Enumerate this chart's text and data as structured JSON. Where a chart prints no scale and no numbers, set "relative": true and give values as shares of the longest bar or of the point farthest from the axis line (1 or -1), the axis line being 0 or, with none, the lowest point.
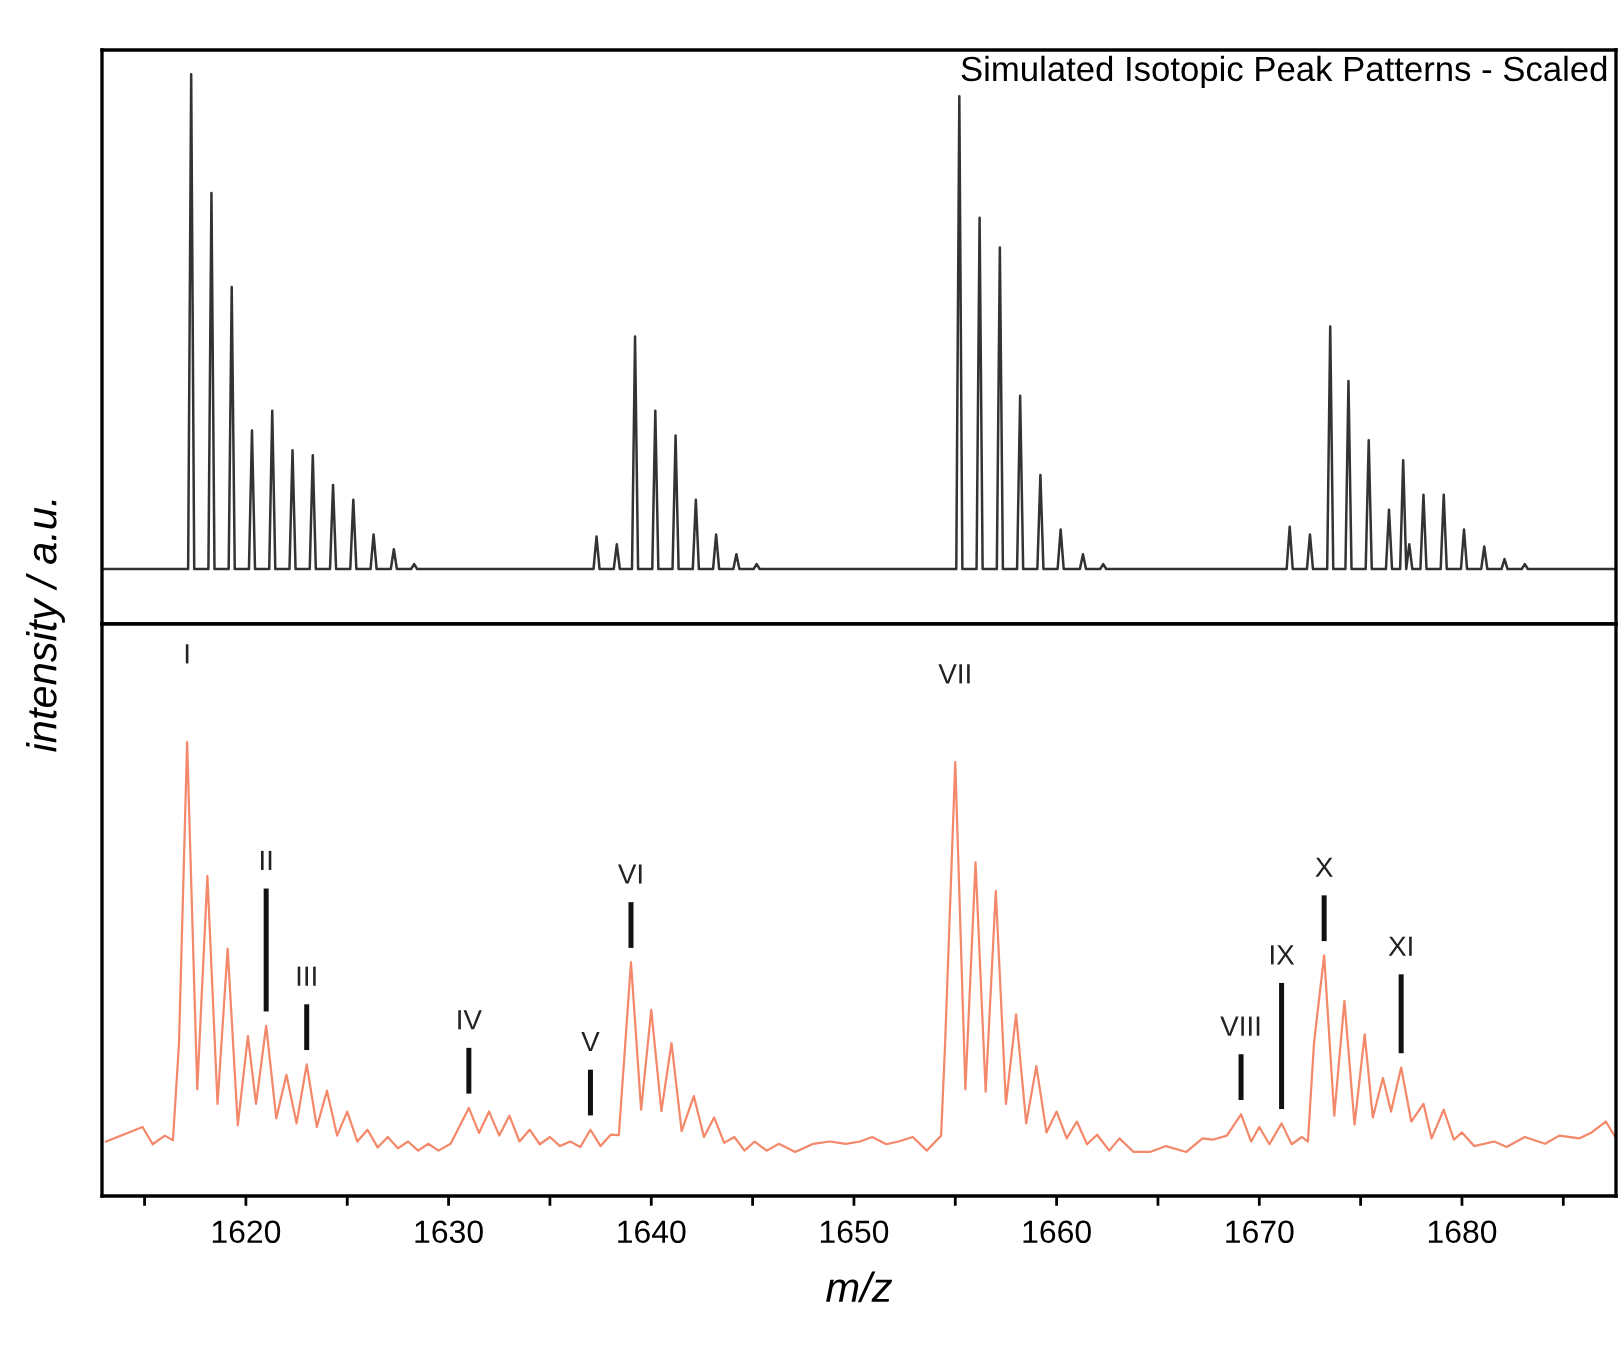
{
  "chart_data": [
    {
      "type": "line",
      "title": "Simulated Isotopic Peak Patterns - Scaled",
      "ylabel": "intensity / a.u.",
      "relative": true,
      "xlim": [
        1612.9,
        1687.6
      ],
      "tick_labels": false,
      "grid": false,
      "legend": false,
      "series": [
        {
          "color": "#333333",
          "x": [
            1612.9,
            1617.15,
            1617.3,
            1617.45,
            1618.15,
            1618.3,
            1618.45,
            1619.15,
            1619.3,
            1619.45,
            1620.15,
            1620.3,
            1620.45,
            1621.15,
            1621.3,
            1621.45,
            1622.15,
            1622.3,
            1622.45,
            1623.15,
            1623.3,
            1623.45,
            1624.15,
            1624.3,
            1624.45,
            1625.15,
            1625.3,
            1625.45,
            1626.15,
            1626.3,
            1626.45,
            1627.15,
            1627.3,
            1627.45,
            1628.15,
            1628.3,
            1628.45,
            1637.15,
            1637.3,
            1637.45,
            1638.15,
            1638.3,
            1638.45,
            1639.05,
            1639.2,
            1639.35,
            1640.05,
            1640.2,
            1640.35,
            1641.05,
            1641.2,
            1641.35,
            1642.05,
            1642.2,
            1642.35,
            1643.05,
            1643.2,
            1643.35,
            1644.05,
            1644.2,
            1644.35,
            1645.05,
            1645.2,
            1645.35,
            1655.05,
            1655.2,
            1655.35,
            1656.05,
            1656.2,
            1656.35,
            1657.05,
            1657.2,
            1657.35,
            1658.05,
            1658.2,
            1658.35,
            1659.05,
            1659.2,
            1659.35,
            1660.05,
            1660.2,
            1660.35,
            1661.15,
            1661.3,
            1661.45,
            1662.15,
            1662.3,
            1662.45,
            1671.35,
            1671.5,
            1671.65,
            1672.35,
            1672.5,
            1672.65,
            1673.35,
            1673.5,
            1673.65,
            1674.25,
            1674.4,
            1674.55,
            1675.25,
            1675.4,
            1675.55,
            1676.25,
            1676.4,
            1676.55,
            1676.95,
            1677.1,
            1677.25,
            1677.25,
            1677.4,
            1677.55,
            1677.95,
            1678.1,
            1678.25,
            1678.95,
            1679.1,
            1679.25,
            1679.95,
            1680.1,
            1680.25,
            1680.95,
            1681.1,
            1681.25,
            1681.95,
            1682.1,
            1682.25,
            1682.95,
            1683.1,
            1683.25,
            1687.6
          ],
          "values": [
            0.1,
            0.1,
            1.0,
            0.1,
            0.1,
            0.784,
            0.1,
            0.1,
            0.613,
            0.1,
            0.1,
            0.352,
            0.1,
            0.1,
            0.388,
            0.1,
            0.1,
            0.316,
            0.1,
            0.1,
            0.307,
            0.1,
            0.1,
            0.253,
            0.1,
            0.1,
            0.226,
            0.1,
            0.1,
            0.163,
            0.1,
            0.1,
            0.136,
            0.1,
            0.1,
            0.109,
            0.1,
            0.1,
            0.159,
            0.1,
            0.1,
            0.145,
            0.1,
            0.1,
            0.523,
            0.1,
            0.1,
            0.388,
            0.1,
            0.1,
            0.343,
            0.1,
            0.1,
            0.226,
            0.1,
            0.1,
            0.163,
            0.1,
            0.1,
            0.127,
            0.1,
            0.1,
            0.109,
            0.1,
            0.1,
            0.96,
            0.1,
            0.1,
            0.739,
            0.1,
            0.1,
            0.685,
            0.1,
            0.1,
            0.415,
            0.1,
            0.1,
            0.271,
            0.1,
            0.1,
            0.172,
            0.1,
            0.1,
            0.127,
            0.1,
            0.1,
            0.109,
            0.1,
            0.1,
            0.177,
            0.1,
            0.1,
            0.163,
            0.1,
            0.1,
            0.541,
            0.1,
            0.1,
            0.442,
            0.1,
            0.1,
            0.334,
            0.1,
            0.1,
            0.208,
            0.1,
            0.1,
            0.298,
            0.1,
            0.1,
            0.145,
            0.1,
            0.1,
            0.235,
            0.1,
            0.1,
            0.235,
            0.1,
            0.1,
            0.172,
            0.1,
            0.1,
            0.141,
            0.1,
            0.1,
            0.118,
            0.1,
            0.1,
            0.109,
            0.1,
            0.1
          ]
        }
      ]
    },
    {
      "type": "line",
      "xlabel": "m/z",
      "relative": true,
      "xlim": [
        1612.9,
        1687.6
      ],
      "grid": false,
      "legend": false,
      "xticks": [
        {
          "value": 1615,
          "label": null
        },
        1620,
        {
          "value": 1625,
          "label": null
        },
        1630,
        {
          "value": 1635,
          "label": null
        },
        1640,
        {
          "value": 1645,
          "label": null
        },
        1650,
        {
          "value": 1655,
          "label": null
        },
        1660,
        {
          "value": 1665,
          "label": null
        },
        1670,
        {
          "value": 1675,
          "label": null
        },
        1680,
        {
          "value": 1685,
          "label": null
        }
      ],
      "tick_labels": "x",
      "series": [
        {
          "color": "#f4886a",
          "x": [
            1613.1,
            1614.9,
            1615.4,
            1616.0,
            1616.4,
            1616.7,
            1617.1,
            1617.6,
            1618.1,
            1618.6,
            1619.1,
            1619.6,
            1620.1,
            1620.5,
            1621.0,
            1621.5,
            1622.0,
            1622.5,
            1623.0,
            1623.5,
            1624.0,
            1624.5,
            1625.0,
            1625.5,
            1626.0,
            1626.5,
            1627.0,
            1627.5,
            1628.0,
            1628.5,
            1629.0,
            1629.5,
            1630.1,
            1631.0,
            1631.5,
            1632.0,
            1632.5,
            1633.0,
            1633.5,
            1634.0,
            1634.5,
            1635.0,
            1635.5,
            1636.0,
            1636.5,
            1637.0,
            1637.5,
            1638.0,
            1638.4,
            1639.0,
            1639.5,
            1640.0,
            1640.5,
            1641.0,
            1641.5,
            1642.1,
            1642.6,
            1643.1,
            1643.6,
            1644.1,
            1644.6,
            1645.1,
            1645.7,
            1646.3,
            1647.1,
            1648.0,
            1648.8,
            1649.6,
            1650.3,
            1650.9,
            1651.6,
            1652.2,
            1652.9,
            1653.6,
            1654.3,
            1654.5,
            1655.0,
            1655.5,
            1656.0,
            1656.5,
            1657.0,
            1657.5,
            1658.0,
            1658.5,
            1659.0,
            1659.5,
            1660.0,
            1660.5,
            1661.0,
            1661.5,
            1662.0,
            1662.6,
            1663.1,
            1663.8,
            1664.6,
            1665.4,
            1666.4,
            1667.2,
            1667.7,
            1668.4,
            1669.1,
            1669.6,
            1670.0,
            1670.5,
            1671.1,
            1671.6,
            1672.1,
            1672.4,
            1672.7,
            1673.2,
            1673.7,
            1674.2,
            1674.7,
            1675.2,
            1675.6,
            1676.1,
            1676.5,
            1677.0,
            1677.5,
            1678.1,
            1678.5,
            1679.1,
            1679.6,
            1680.0,
            1680.6,
            1681.6,
            1682.2,
            1683.1,
            1684.1,
            1684.8,
            1685.8,
            1686.4,
            1687.1,
            1687.6
          ],
          "values": [
            0.12,
            0.152,
            0.114,
            0.133,
            0.123,
            0.337,
            1.0,
            0.235,
            0.705,
            0.203,
            0.545,
            0.156,
            0.352,
            0.203,
            0.375,
            0.171,
            0.267,
            0.16,
            0.29,
            0.152,
            0.232,
            0.133,
            0.186,
            0.12,
            0.146,
            0.107,
            0.13,
            0.105,
            0.12,
            0.1,
            0.115,
            0.1,
            0.115,
            0.194,
            0.139,
            0.186,
            0.133,
            0.177,
            0.12,
            0.146,
            0.114,
            0.13,
            0.11,
            0.12,
            0.108,
            0.146,
            0.11,
            0.135,
            0.134,
            0.515,
            0.19,
            0.41,
            0.187,
            0.337,
            0.143,
            0.22,
            0.13,
            0.173,
            0.117,
            0.13,
            0.1,
            0.12,
            0.1,
            0.115,
            0.097,
            0.115,
            0.12,
            0.115,
            0.12,
            0.13,
            0.114,
            0.12,
            0.13,
            0.1,
            0.133,
            0.337,
            0.956,
            0.235,
            0.735,
            0.23,
            0.672,
            0.203,
            0.4,
            0.16,
            0.286,
            0.14,
            0.186,
            0.127,
            0.164,
            0.114,
            0.135,
            0.1,
            0.127,
            0.097,
            0.097,
            0.11,
            0.097,
            0.127,
            0.124,
            0.133,
            0.18,
            0.12,
            0.152,
            0.114,
            0.16,
            0.114,
            0.13,
            0.12,
            0.337,
            0.53,
            0.177,
            0.43,
            0.157,
            0.356,
            0.173,
            0.26,
            0.186,
            0.283,
            0.164,
            0.203,
            0.127,
            0.19,
            0.124,
            0.14,
            0.11,
            0.12,
            0.108,
            0.13,
            0.115,
            0.133,
            0.127,
            0.14,
            0.164,
            0.127
          ]
        }
      ],
      "annotations": [
        {
          "text": "I",
          "x": 1617.1,
          "y": 1.0
        },
        {
          "text": "II",
          "x": 1621.0,
          "y": 0.375
        },
        {
          "text": "III",
          "x": 1623.0,
          "y": 0.29
        },
        {
          "text": "IV",
          "x": 1631.0,
          "y": 0.194
        },
        {
          "text": "V",
          "x": 1637.0,
          "y": 0.146
        },
        {
          "text": "VI",
          "x": 1639.0,
          "y": 0.515
        },
        {
          "text": "VII",
          "x": 1655.0,
          "y": 0.956
        },
        {
          "text": "VIII",
          "x": 1669.1,
          "y": 0.18
        },
        {
          "text": "IX",
          "x": 1671.1,
          "y": 0.16
        },
        {
          "text": "X",
          "x": 1673.2,
          "y": 0.53
        },
        {
          "text": "XI",
          "x": 1677.0,
          "y": 0.283
        }
      ]
    }
  ]
}
